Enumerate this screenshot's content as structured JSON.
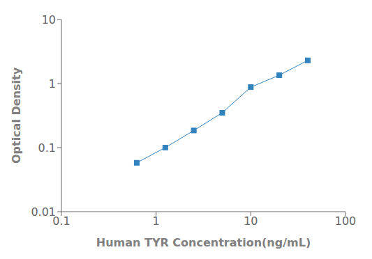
{
  "chart_data": {
    "type": "line",
    "x": [
      0.625,
      1.25,
      2.5,
      5.0,
      10.0,
      20.0,
      40.0
    ],
    "values": [
      0.058,
      0.1,
      0.185,
      0.35,
      0.88,
      1.35,
      2.3
    ],
    "xlabel": "Human TYR Concentration(ng/mL)",
    "ylabel": "Optical Density",
    "xlim": [
      0.1,
      100
    ],
    "ylim": [
      0.01,
      10
    ],
    "xticks": [
      0.1,
      1,
      10,
      100
    ],
    "yticks": [
      0.01,
      0.1,
      1,
      10
    ],
    "log": true,
    "grid": false,
    "marker": "square"
  }
}
